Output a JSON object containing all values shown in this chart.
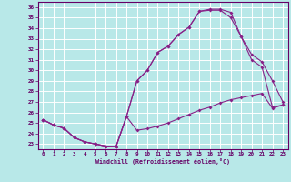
{
  "xlabel": "Windchill (Refroidissement éolien,°C)",
  "background_color": "#b8e8e8",
  "grid_color": "#ffffff",
  "line_color": "#882288",
  "ylim": [
    22.5,
    36.5
  ],
  "xlim": [
    -0.5,
    23.5
  ],
  "x_ticks": [
    0,
    1,
    2,
    3,
    4,
    5,
    6,
    7,
    8,
    9,
    10,
    11,
    12,
    13,
    14,
    15,
    16,
    17,
    18,
    19,
    20,
    21,
    22,
    23
  ],
  "y_ticks": [
    23,
    24,
    25,
    26,
    27,
    28,
    29,
    30,
    31,
    32,
    33,
    34,
    35,
    36
  ],
  "line1_x": [
    0,
    1,
    2,
    3,
    4,
    5,
    6,
    7,
    8,
    9,
    10,
    11,
    12,
    13,
    14,
    15,
    16,
    17,
    18,
    19,
    20,
    21,
    22,
    23
  ],
  "line1_y": [
    25.3,
    24.8,
    24.5,
    23.6,
    23.2,
    23.0,
    22.8,
    22.75,
    25.6,
    24.3,
    24.45,
    24.7,
    25.0,
    25.4,
    25.8,
    26.2,
    26.5,
    26.9,
    27.2,
    27.4,
    27.6,
    27.8,
    26.4,
    26.7
  ],
  "line2_x": [
    0,
    1,
    2,
    3,
    4,
    5,
    6,
    7,
    8,
    9,
    10,
    11,
    12,
    13,
    14,
    15,
    16,
    17,
    18,
    19,
    20,
    21,
    22,
    23
  ],
  "line2_y": [
    25.3,
    24.8,
    24.5,
    23.6,
    23.2,
    23.0,
    22.8,
    22.75,
    25.6,
    29.0,
    30.0,
    31.7,
    32.3,
    33.4,
    34.1,
    35.6,
    35.7,
    35.7,
    35.0,
    33.2,
    31.0,
    30.3,
    26.5,
    26.7
  ],
  "line3_x": [
    0,
    1,
    2,
    3,
    4,
    5,
    6,
    7,
    8,
    9,
    10,
    11,
    12,
    13,
    14,
    15,
    16,
    17,
    18,
    19,
    20,
    21,
    22,
    23
  ],
  "line3_y": [
    25.3,
    24.8,
    24.5,
    23.6,
    23.2,
    23.0,
    22.8,
    22.75,
    25.6,
    29.0,
    30.0,
    31.7,
    32.3,
    33.4,
    34.1,
    35.6,
    35.8,
    35.8,
    35.5,
    33.2,
    31.5,
    30.8,
    29.0,
    27.0
  ]
}
